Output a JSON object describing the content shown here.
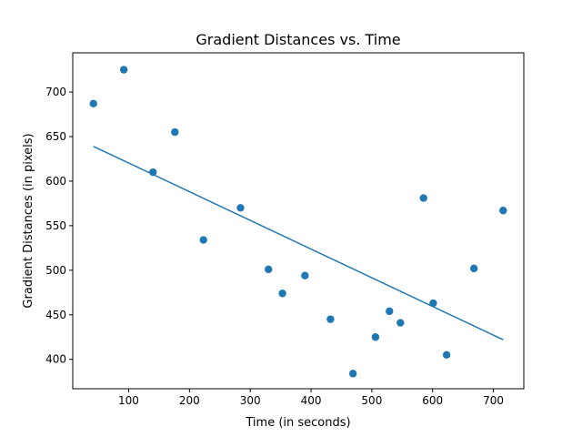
{
  "chart_data": {
    "type": "scatter",
    "title": "Gradient Distances vs. Time",
    "xlabel": "Time (in seconds)",
    "ylabel": "Gradient Distances (in pixels)",
    "xlim": [
      8,
      750
    ],
    "ylim": [
      367,
      744
    ],
    "xticks": [
      100,
      200,
      300,
      400,
      500,
      600,
      700
    ],
    "yticks": [
      400,
      450,
      500,
      550,
      600,
      650,
      700
    ],
    "grid": false,
    "point_color": "#1f77b4",
    "line_color": "#1f77b4",
    "points": [
      {
        "x": 42,
        "y": 687
      },
      {
        "x": 92,
        "y": 725
      },
      {
        "x": 140,
        "y": 610
      },
      {
        "x": 176,
        "y": 655
      },
      {
        "x": 223,
        "y": 534
      },
      {
        "x": 284,
        "y": 570
      },
      {
        "x": 330,
        "y": 501
      },
      {
        "x": 353,
        "y": 474
      },
      {
        "x": 390,
        "y": 494
      },
      {
        "x": 432,
        "y": 445
      },
      {
        "x": 469,
        "y": 384
      },
      {
        "x": 506,
        "y": 425
      },
      {
        "x": 529,
        "y": 454
      },
      {
        "x": 547,
        "y": 441
      },
      {
        "x": 585,
        "y": 581
      },
      {
        "x": 601,
        "y": 463
      },
      {
        "x": 623,
        "y": 405
      },
      {
        "x": 668,
        "y": 502
      },
      {
        "x": 716,
        "y": 567
      }
    ],
    "fit_line": {
      "x": [
        42,
        716
      ],
      "y": [
        639,
        422
      ]
    }
  }
}
